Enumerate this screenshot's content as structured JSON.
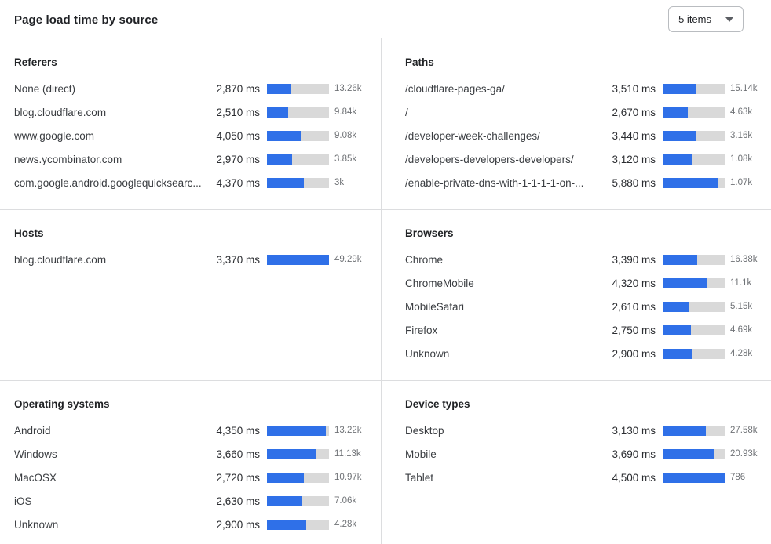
{
  "header": {
    "title": "Page load time by source",
    "items_select": {
      "label": "5 items"
    }
  },
  "colors": {
    "bar_fill": "#2f70e8",
    "bar_track": "#d9d9d9"
  },
  "panels": [
    {
      "title": "Referers",
      "rows": [
        {
          "label": "None (direct)",
          "value": "2,870 ms",
          "count": "13.26k",
          "bar_pct": 39
        },
        {
          "label": "blog.cloudflare.com",
          "value": "2,510 ms",
          "count": "9.84k",
          "bar_pct": 34
        },
        {
          "label": "www.google.com",
          "value": "4,050 ms",
          "count": "9.08k",
          "bar_pct": 56
        },
        {
          "label": "news.ycombinator.com",
          "value": "2,970 ms",
          "count": "3.85k",
          "bar_pct": 41
        },
        {
          "label": "com.google.android.googlequicksearc...",
          "value": "4,370 ms",
          "count": "3k",
          "bar_pct": 60
        }
      ]
    },
    {
      "title": "Paths",
      "rows": [
        {
          "label": "/cloudflare-pages-ga/",
          "value": "3,510 ms",
          "count": "15.14k",
          "bar_pct": 54
        },
        {
          "label": "/",
          "value": "2,670 ms",
          "count": "4.63k",
          "bar_pct": 41
        },
        {
          "label": "/developer-week-challenges/",
          "value": "3,440 ms",
          "count": "3.16k",
          "bar_pct": 53
        },
        {
          "label": "/developers-developers-developers/",
          "value": "3,120 ms",
          "count": "1.08k",
          "bar_pct": 48
        },
        {
          "label": "/enable-private-dns-with-1-1-1-1-on-...",
          "value": "5,880 ms",
          "count": "1.07k",
          "bar_pct": 90
        }
      ]
    },
    {
      "title": "Hosts",
      "rows": [
        {
          "label": "blog.cloudflare.com",
          "value": "3,370 ms",
          "count": "49.29k",
          "bar_pct": 100
        }
      ]
    },
    {
      "title": "Browsers",
      "rows": [
        {
          "label": "Chrome",
          "value": "3,390 ms",
          "count": "16.38k",
          "bar_pct": 56
        },
        {
          "label": "ChromeMobile",
          "value": "4,320 ms",
          "count": "11.1k",
          "bar_pct": 71
        },
        {
          "label": "MobileSafari",
          "value": "2,610 ms",
          "count": "5.15k",
          "bar_pct": 43
        },
        {
          "label": "Firefox",
          "value": "2,750 ms",
          "count": "4.69k",
          "bar_pct": 45
        },
        {
          "label": "Unknown",
          "value": "2,900 ms",
          "count": "4.28k",
          "bar_pct": 48
        }
      ]
    },
    {
      "title": "Operating systems",
      "rows": [
        {
          "label": "Android",
          "value": "4,350 ms",
          "count": "13.22k",
          "bar_pct": 95
        },
        {
          "label": "Windows",
          "value": "3,660 ms",
          "count": "11.13k",
          "bar_pct": 80
        },
        {
          "label": "MacOSX",
          "value": "2,720 ms",
          "count": "10.97k",
          "bar_pct": 59
        },
        {
          "label": "iOS",
          "value": "2,630 ms",
          "count": "7.06k",
          "bar_pct": 57
        },
        {
          "label": "Unknown",
          "value": "2,900 ms",
          "count": "4.28k",
          "bar_pct": 63
        }
      ]
    },
    {
      "title": "Device types",
      "rows": [
        {
          "label": "Desktop",
          "value": "3,130 ms",
          "count": "27.58k",
          "bar_pct": 69
        },
        {
          "label": "Mobile",
          "value": "3,690 ms",
          "count": "20.93k",
          "bar_pct": 82
        },
        {
          "label": "Tablet",
          "value": "4,500 ms",
          "count": "786",
          "bar_pct": 100
        }
      ]
    }
  ]
}
